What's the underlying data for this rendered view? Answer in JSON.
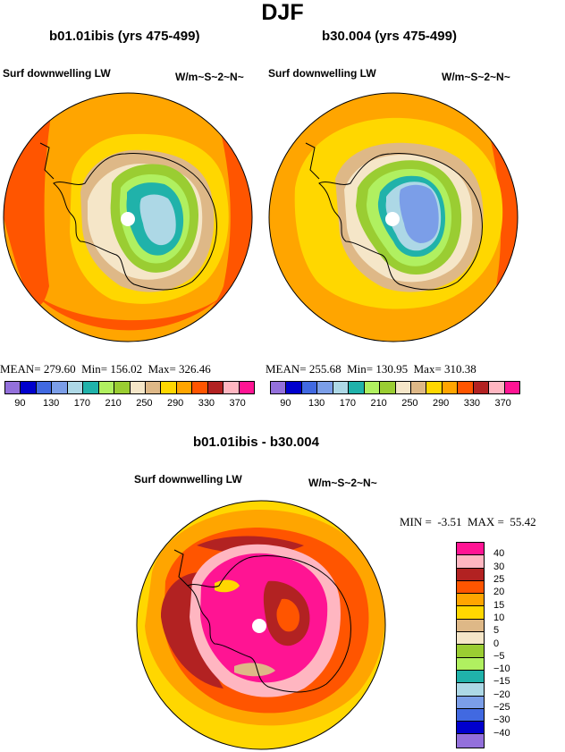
{
  "title": "DJF",
  "panels": [
    {
      "title": "b01.01ibis (yrs 475-499)",
      "variable": "Surf downwelling LW",
      "units": "W/m~S~2~N~",
      "stats": {
        "mean_label": "MEAN=",
        "mean": "279.60",
        "min_label": "Min=",
        "min": "156.02",
        "max_label": "Max=",
        "max": "326.46"
      }
    },
    {
      "title": "b30.004 (yrs 475-499)",
      "variable": "Surf downwelling LW",
      "units": "W/m~S~2~N~",
      "stats": {
        "mean_label": "MEAN=",
        "mean": "255.68",
        "min_label": "Min=",
        "min": "130.95",
        "max_label": "Max=",
        "max": "310.38"
      }
    }
  ],
  "colorbar_abs": {
    "colors": [
      "#9370db",
      "#0000cd",
      "#4169e1",
      "#7b9ee8",
      "#add8e6",
      "#20b2aa",
      "#b0f060",
      "#9acd32",
      "#f5e6c8",
      "#deb887",
      "#ffd700",
      "#ffa500",
      "#ff5500",
      "#b22222",
      "#ffb6c1",
      "#ff1493"
    ],
    "labels": [
      "90",
      "130",
      "170",
      "210",
      "250",
      "290",
      "330",
      "370"
    ]
  },
  "diff_panel": {
    "title": "b01.01ibis - b30.004",
    "variable": "Surf downwelling LW",
    "units": "W/m~S~2~N~",
    "stats": {
      "min_label": "MIN =",
      "min": "-3.51",
      "max_label": "MAX =",
      "max": "55.42"
    }
  },
  "colorbar_diff": {
    "colors": [
      "#ff1493",
      "#ffb6c1",
      "#b22222",
      "#ff5500",
      "#ffa500",
      "#ffd700",
      "#deb887",
      "#f5e6c8",
      "#9acd32",
      "#b0f060",
      "#20b2aa",
      "#add8e6",
      "#7b9ee8",
      "#4169e1",
      "#0000cd",
      "#9370db"
    ],
    "labels": [
      "40",
      "30",
      "25",
      "20",
      "15",
      "10",
      "5",
      "0",
      "−5",
      "−10",
      "−15",
      "−20",
      "−25",
      "−30",
      "−40"
    ]
  }
}
